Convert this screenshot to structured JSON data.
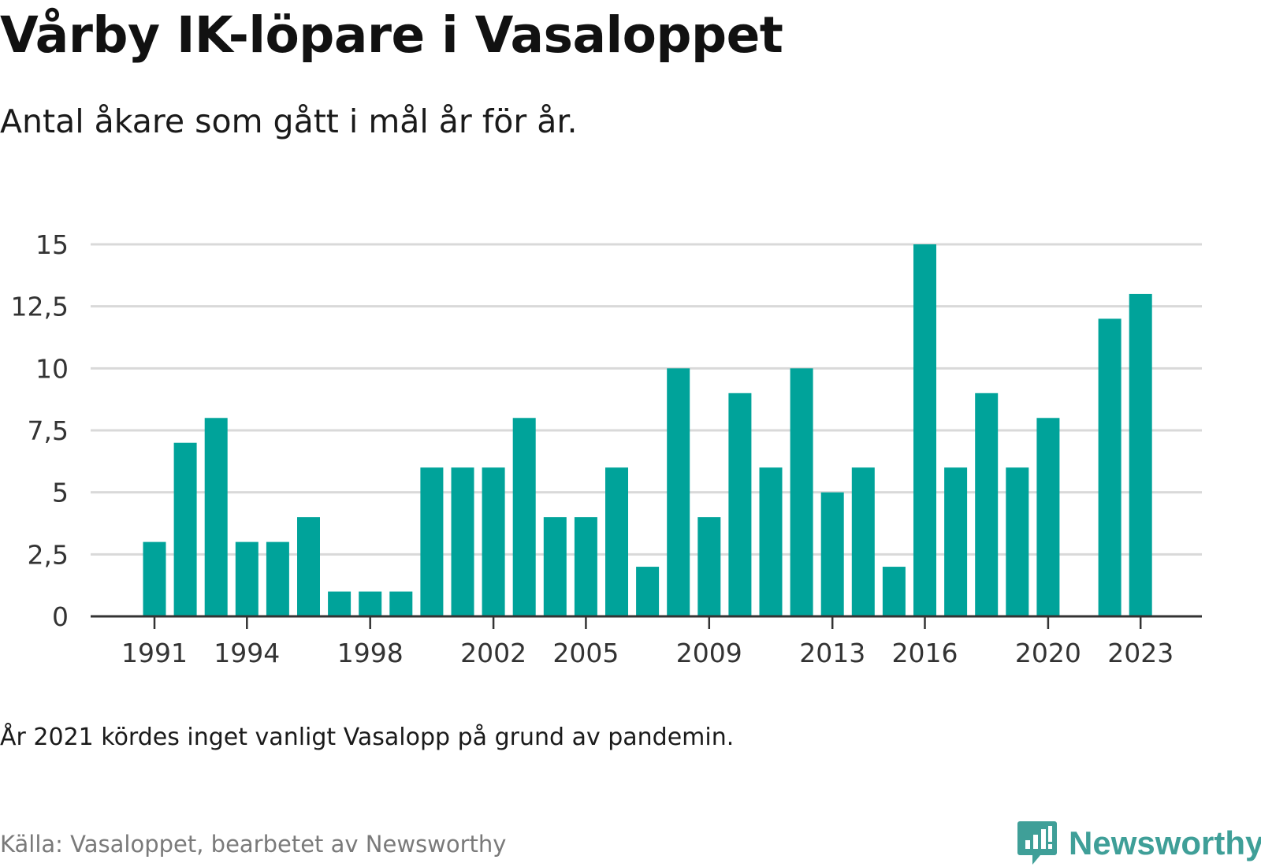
{
  "title": "Vårby IK-löpare i Vasaloppet",
  "subtitle": "Antal åkare som gått i mål år för år.",
  "note": "År 2021 kördes inget vanligt Vasalopp på grund av pandemin.",
  "source": "Källa: Vasaloppet, bearbetet av Newsworthy",
  "brand": {
    "name": "Newsworthy",
    "icon": "newsworthy-logo-icon",
    "color": "#3f9f98"
  },
  "colors": {
    "bar": "#00a39a",
    "grid": "#d9d9d9",
    "axis": "#333333",
    "tick_text": "#333333"
  },
  "chart_data": {
    "type": "bar",
    "title": "",
    "xlabel": "",
    "ylabel": "",
    "ylim": [
      0,
      15
    ],
    "y_ticks": [
      0,
      2.5,
      5,
      7.5,
      10,
      12.5,
      15
    ],
    "y_tick_labels": [
      "0",
      "2,5",
      "5",
      "7,5",
      "10",
      "12,5",
      "15"
    ],
    "grid": true,
    "categories": [
      1991,
      1992,
      1993,
      1994,
      1995,
      1996,
      1997,
      1998,
      1999,
      2000,
      2001,
      2002,
      2003,
      2004,
      2005,
      2006,
      2007,
      2008,
      2009,
      2010,
      2011,
      2012,
      2013,
      2014,
      2015,
      2016,
      2017,
      2018,
      2019,
      2020,
      2022,
      2023
    ],
    "values": [
      3,
      7,
      8,
      3,
      3,
      4,
      1,
      1,
      1,
      6,
      6,
      6,
      8,
      4,
      4,
      6,
      2,
      10,
      4,
      9,
      6,
      10,
      5,
      6,
      2,
      15,
      6,
      9,
      6,
      8,
      12,
      13
    ],
    "x_ticks": [
      1991,
      1994,
      1998,
      2002,
      2005,
      2009,
      2013,
      2016,
      2020,
      2023
    ]
  }
}
